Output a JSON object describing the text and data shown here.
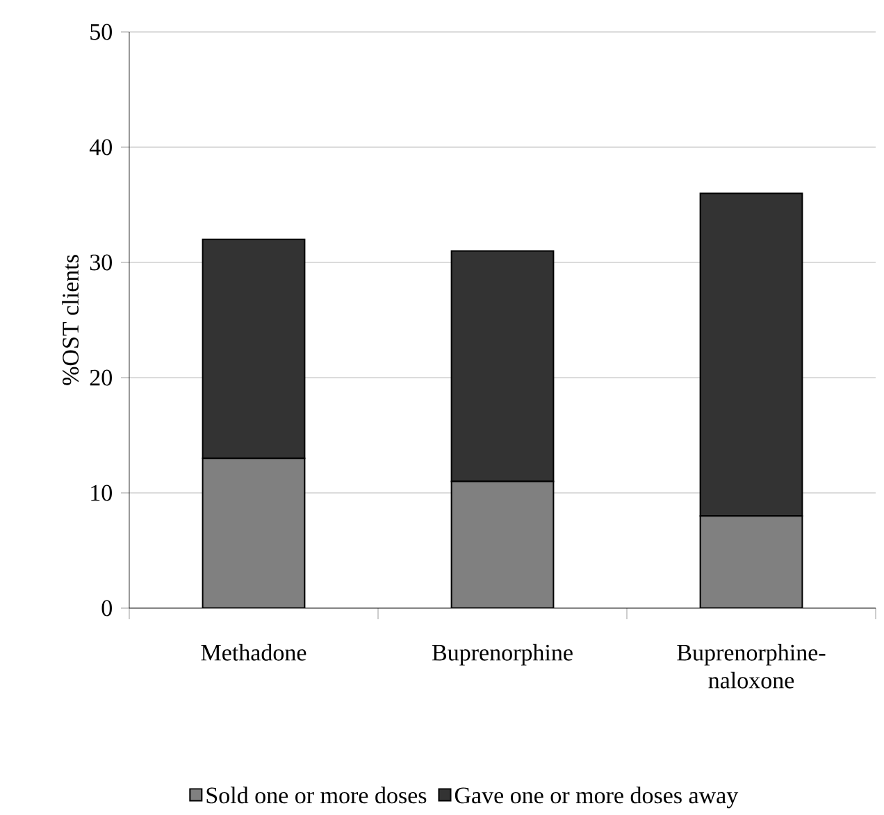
{
  "chart_data": {
    "type": "bar",
    "stacked": true,
    "ylabel": "%OST clients",
    "categories": [
      "Methadone",
      "Buprenorphine",
      "Buprenorphine-naloxone"
    ],
    "series": [
      {
        "name": "Sold one or more doses",
        "color": "#808080",
        "values": [
          13,
          11,
          8
        ]
      },
      {
        "name": "Gave one or more doses away",
        "color": "#333333",
        "values": [
          19,
          20,
          28
        ]
      }
    ],
    "ylim": [
      0,
      50
    ],
    "yticks": [
      0,
      10,
      20,
      30,
      40,
      50
    ],
    "grid": "y",
    "legend": "bottom"
  }
}
